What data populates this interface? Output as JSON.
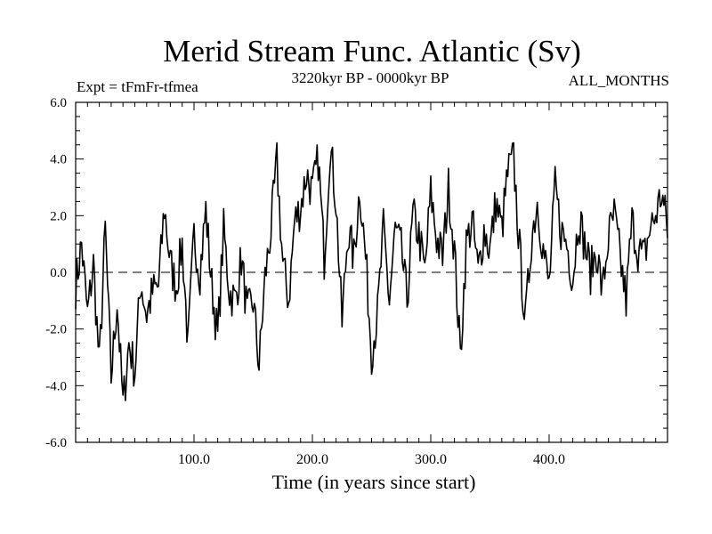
{
  "chart_data": {
    "type": "line",
    "title": "Merid Stream Func. Atlantic (Sv)",
    "subtitle_left": "Expt = tFmFr-tfmea",
    "subtitle_center": "3220kyr BP - 0000kyr BP",
    "subtitle_right": "ALL_MONTHS",
    "xlabel": "Time (in years since start)",
    "ylabel": "",
    "xlim": [
      0,
      500
    ],
    "ylim": [
      -6,
      6
    ],
    "x_ticks": [
      100,
      200,
      300,
      400
    ],
    "x_tick_labels": [
      "100.0",
      "200.0",
      "300.0",
      "400.0"
    ],
    "y_ticks": [
      -6,
      -4,
      -2,
      0,
      2,
      4,
      6
    ],
    "y_tick_labels": [
      "-6.0",
      "-4.0",
      "-2.0",
      "0.0",
      "2.0",
      "4.0",
      "6.0"
    ],
    "reference_line": 0,
    "series": [
      {
        "name": "Merid Stream Func. Atlantic",
        "x": [
          0,
          5,
          10,
          15,
          20,
          25,
          30,
          35,
          40,
          45,
          50,
          55,
          60,
          65,
          70,
          75,
          80,
          85,
          90,
          95,
          100,
          105,
          110,
          115,
          120,
          125,
          130,
          135,
          140,
          145,
          150,
          155,
          160,
          165,
          170,
          175,
          180,
          185,
          190,
          195,
          200,
          205,
          210,
          215,
          220,
          225,
          230,
          235,
          240,
          245,
          250,
          255,
          260,
          265,
          270,
          275,
          280,
          285,
          290,
          295,
          300,
          305,
          310,
          315,
          320,
          325,
          330,
          335,
          340,
          345,
          350,
          355,
          360,
          365,
          370,
          375,
          380,
          385,
          390,
          395,
          400,
          405,
          410,
          415,
          420,
          425,
          430,
          435,
          440,
          445,
          450,
          455,
          460,
          465,
          470,
          475,
          480,
          485,
          490,
          495,
          500
        ],
        "values": [
          -0.5,
          1.0,
          -1.5,
          0.3,
          -3.3,
          1.5,
          -3.7,
          -1.0,
          -4.7,
          -2.5,
          -3.5,
          -0.3,
          -1.5,
          -0.7,
          -0.5,
          2.3,
          0.3,
          -0.5,
          1.0,
          -2.6,
          1.3,
          0.0,
          2.2,
          -0.5,
          -2.3,
          1.5,
          -0.7,
          -1.0,
          0.5,
          -1.5,
          -1.0,
          -3.3,
          -0.2,
          1.5,
          3.9,
          0.3,
          -1.0,
          1.8,
          2.3,
          3.5,
          2.8,
          4.0,
          0.5,
          4.5,
          2.5,
          -1.8,
          1.5,
          0.5,
          3.0,
          0.5,
          -2.8,
          -1.5,
          1.5,
          -1.0,
          1.5,
          0.8,
          -1.0,
          2.0,
          1.3,
          0.0,
          2.8,
          1.2,
          0.5,
          3.0,
          0.8,
          -3.0,
          1.0,
          1.8,
          0.0,
          1.5,
          0.8,
          2.5,
          1.5,
          3.5,
          4.0,
          0.8,
          -1.8,
          1.2,
          2.5,
          0.8,
          -0.5,
          3.0,
          1.5,
          1.0,
          -0.2,
          2.0,
          1.0,
          0.0,
          0.8,
          -0.7,
          1.2,
          2.0,
          0.5,
          -1.0,
          1.8,
          0.8,
          0.5,
          1.5,
          2.0,
          2.8,
          1.5
        ]
      }
    ]
  }
}
